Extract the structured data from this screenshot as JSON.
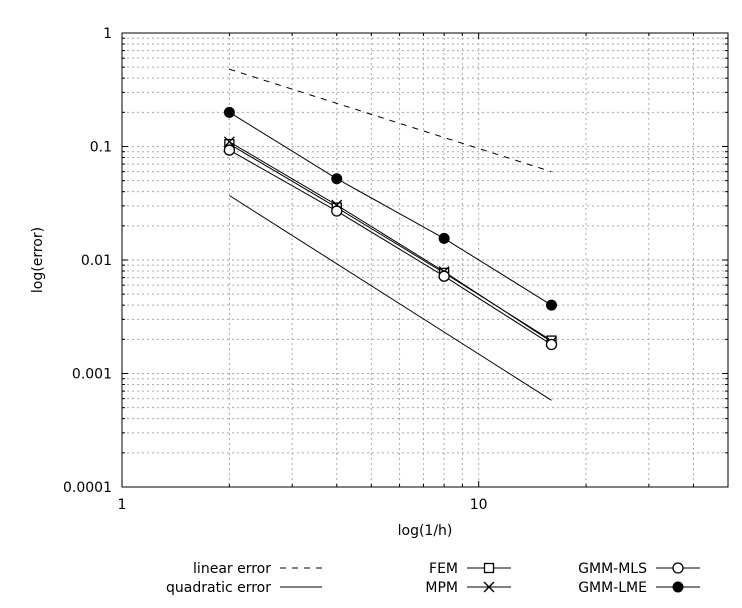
{
  "chart_data": {
    "type": "line",
    "xscale": "log",
    "yscale": "log",
    "xlabel": "log(1/h)",
    "ylabel": "log(error)",
    "xlim": [
      1,
      50
    ],
    "ylim": [
      0.0001,
      1
    ],
    "grid": true,
    "xticks": [
      {
        "value": 1,
        "label": "1"
      },
      {
        "value": 10,
        "label": "10"
      }
    ],
    "yticks": [
      {
        "value": 0.0001,
        "label": "0.0001"
      },
      {
        "value": 0.001,
        "label": "0.001"
      },
      {
        "value": 0.01,
        "label": "0.01"
      },
      {
        "value": 0.1,
        "label": "0.1"
      },
      {
        "value": 1,
        "label": "1"
      }
    ],
    "legend_position": "bottom",
    "series": [
      {
        "name": "FEM",
        "marker": "square",
        "dash": "solid",
        "x": [
          2,
          4,
          8,
          16
        ],
        "y": [
          0.105,
          0.029,
          0.0077,
          0.00195
        ]
      },
      {
        "name": "MPM",
        "marker": "cross",
        "dash": "solid",
        "x": [
          2,
          4,
          8,
          16
        ],
        "y": [
          0.11,
          0.0305,
          0.0079,
          0.0019
        ]
      },
      {
        "name": "GMM-MLS",
        "marker": "circle-open",
        "dash": "solid",
        "x": [
          2,
          4,
          8,
          16
        ],
        "y": [
          0.093,
          0.027,
          0.0072,
          0.0018
        ]
      },
      {
        "name": "GMM-LME",
        "marker": "circle-filled",
        "dash": "solid",
        "x": [
          2,
          4,
          8,
          16
        ],
        "y": [
          0.2,
          0.052,
          0.0155,
          0.004
        ]
      },
      {
        "name": "linear error",
        "marker": "none",
        "dash": "dashed",
        "x": [
          2,
          16
        ],
        "y": [
          0.48,
          0.06
        ]
      },
      {
        "name": "quadratic error",
        "marker": "none",
        "dash": "solid",
        "x": [
          2,
          16
        ],
        "y": [
          0.037,
          0.00058
        ]
      }
    ]
  }
}
